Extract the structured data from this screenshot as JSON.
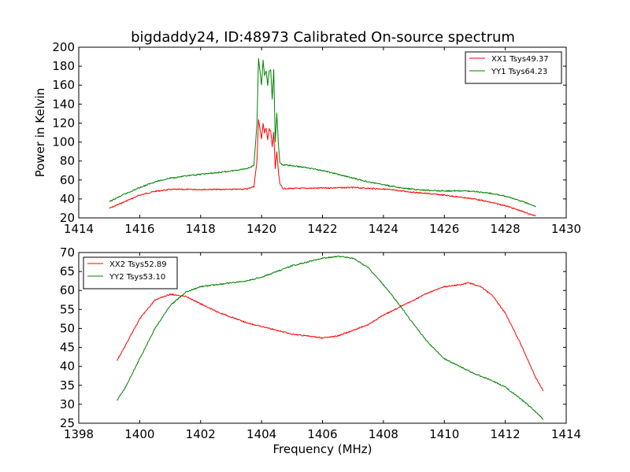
{
  "figure": {
    "background": "#ffffff"
  },
  "chart_data": [
    {
      "type": "line",
      "title": "bigdaddy24, ID:48973 Calibrated On-source spectrum",
      "xlabel": "",
      "ylabel": "Power in Kelvin",
      "xlim": [
        1414,
        1430
      ],
      "ylim": [
        20,
        200
      ],
      "xticks": [
        1414,
        1416,
        1418,
        1420,
        1422,
        1424,
        1426,
        1428,
        1430
      ],
      "yticks": [
        20,
        40,
        60,
        80,
        100,
        120,
        140,
        160,
        180,
        200
      ],
      "grid": false,
      "legend": "top-right",
      "series": [
        {
          "name": "XX1 Tsys49.37",
          "color": "#ff0000",
          "x": [
            1415.0,
            1415.5,
            1416.0,
            1416.5,
            1417.0,
            1417.5,
            1418.0,
            1418.5,
            1419.0,
            1419.5,
            1419.75,
            1419.85,
            1419.9,
            1420.0,
            1420.05,
            1420.1,
            1420.15,
            1420.2,
            1420.25,
            1420.3,
            1420.35,
            1420.4,
            1420.45,
            1420.5,
            1420.55,
            1420.6,
            1420.7,
            1421.0,
            1422.0,
            1423.0,
            1424.0,
            1425.0,
            1426.0,
            1427.0,
            1428.0,
            1429.0
          ],
          "y": [
            30,
            37,
            44,
            48,
            50,
            50,
            50,
            50,
            50,
            50.5,
            53,
            80,
            124,
            103,
            120,
            110,
            115,
            102,
            114,
            112,
            95,
            110,
            72,
            90,
            70,
            56,
            51,
            51,
            51.5,
            52,
            50.5,
            47,
            44,
            40,
            33,
            22
          ]
        },
        {
          "name": "YY1 Tsys64.23",
          "color": "#008000",
          "x": [
            1415.0,
            1415.5,
            1416.0,
            1416.5,
            1417.0,
            1417.5,
            1418.0,
            1418.5,
            1419.0,
            1419.5,
            1419.75,
            1419.85,
            1419.9,
            1420.0,
            1420.05,
            1420.1,
            1420.15,
            1420.2,
            1420.25,
            1420.3,
            1420.35,
            1420.4,
            1420.45,
            1420.5,
            1420.55,
            1420.6,
            1420.7,
            1421.0,
            1421.5,
            1422.0,
            1422.5,
            1423.0,
            1423.5,
            1424.0,
            1424.5,
            1425.0,
            1425.5,
            1426.0,
            1426.5,
            1427.0,
            1427.5,
            1428.0,
            1428.5,
            1429.0
          ],
          "y": [
            37,
            45,
            52,
            58,
            62,
            64,
            66,
            67.5,
            69.5,
            72,
            75,
            120,
            188,
            160,
            186,
            170,
            175,
            160,
            175,
            176,
            145,
            176,
            100,
            130,
            100,
            78,
            76,
            75,
            73,
            70,
            66,
            62,
            58,
            55,
            52,
            50,
            49,
            48.5,
            48.5,
            48,
            46,
            43,
            38,
            32
          ]
        }
      ]
    },
    {
      "type": "line",
      "title": "",
      "xlabel": "Frequency (MHz)",
      "ylabel": "",
      "xlim": [
        1398,
        1414
      ],
      "ylim": [
        25,
        70
      ],
      "xticks": [
        1398,
        1400,
        1402,
        1404,
        1406,
        1408,
        1410,
        1412,
        1414
      ],
      "yticks": [
        25,
        30,
        35,
        40,
        45,
        50,
        55,
        60,
        65,
        70
      ],
      "grid": false,
      "legend": "top-left",
      "series": [
        {
          "name": "XX2 Tsys52.89",
          "color": "#ff0000",
          "x": [
            1399.25,
            1399.5,
            1400.0,
            1400.5,
            1401.0,
            1401.5,
            1402.0,
            1402.5,
            1403.0,
            1403.5,
            1404.0,
            1404.5,
            1405.0,
            1405.5,
            1406.0,
            1406.5,
            1407.0,
            1407.5,
            1408.0,
            1408.5,
            1409.0,
            1409.5,
            1410.0,
            1410.5,
            1410.8,
            1411.2,
            1411.6,
            1412.0,
            1412.5,
            1413.0,
            1413.25
          ],
          "y": [
            41.5,
            45,
            52.5,
            57.5,
            59,
            58.5,
            56.5,
            54.5,
            53,
            51.5,
            50.5,
            49.5,
            48.5,
            48,
            47.5,
            48,
            49.5,
            51,
            53.5,
            55.5,
            57.5,
            59.5,
            61,
            61.5,
            62,
            61,
            58.5,
            54,
            46,
            37,
            33.5
          ]
        },
        {
          "name": "YY2 Tsys53.10",
          "color": "#008000",
          "x": [
            1399.25,
            1399.5,
            1400.0,
            1400.5,
            1401.0,
            1401.5,
            1402.0,
            1402.5,
            1403.0,
            1403.5,
            1404.0,
            1404.5,
            1405.0,
            1405.5,
            1406.0,
            1406.5,
            1407.0,
            1407.5,
            1408.0,
            1408.5,
            1409.0,
            1409.5,
            1410.0,
            1410.5,
            1411.0,
            1411.5,
            1412.0,
            1412.5,
            1413.0,
            1413.25
          ],
          "y": [
            31,
            34,
            42,
            50,
            56,
            59.5,
            61,
            61.5,
            62,
            62.5,
            63.5,
            65,
            66.5,
            67.5,
            68.5,
            69,
            68.5,
            66,
            61.5,
            56.5,
            51,
            46,
            42,
            40,
            38,
            36.5,
            34.5,
            31.5,
            28,
            26
          ]
        }
      ]
    }
  ]
}
